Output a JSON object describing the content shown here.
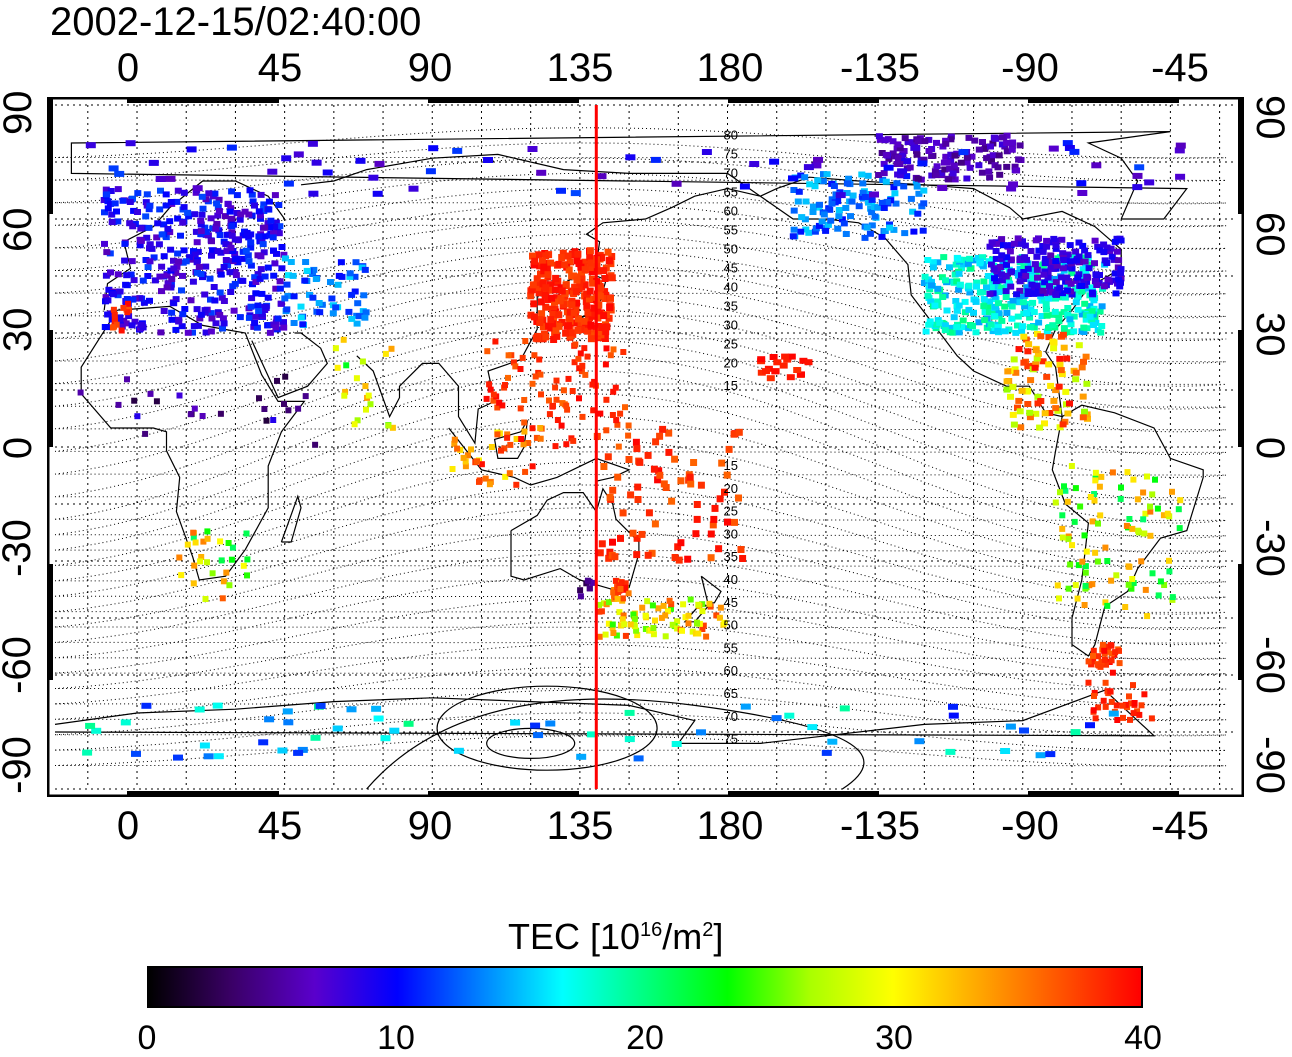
{
  "title": "2002-12-15/02:40:00",
  "lon_ticks": [
    "0",
    "45",
    "90",
    "135",
    "180",
    "-135",
    "-90",
    "-45"
  ],
  "lat_ticks": [
    "90",
    "60",
    "30",
    "0",
    "-30",
    "-60",
    "-90"
  ],
  "contour_labels": [
    "80",
    "75",
    "70",
    "65",
    "60",
    "55",
    "50",
    "45",
    "40",
    "35",
    "30",
    "25",
    "20",
    "15",
    "15",
    "20",
    "25",
    "30",
    "35",
    "40",
    "45",
    "50",
    "55",
    "60",
    "65",
    "70",
    "75"
  ],
  "colorbar": {
    "label_main": "TEC  [10",
    "label_exp1": "16",
    "label_mid": "/m",
    "label_exp2": "2",
    "label_end": "]",
    "ticks": [
      "0",
      "10",
      "20",
      "30",
      "40"
    ],
    "range": [
      0,
      40
    ],
    "colors": [
      "#000000",
      "#3a0066",
      "#5a00cc",
      "#0000ff",
      "#0080ff",
      "#00ffff",
      "#00ff80",
      "#00ff00",
      "#aaff00",
      "#ffff00",
      "#ffaa00",
      "#ff5500",
      "#ff0000"
    ]
  },
  "map": {
    "projection": "cylindrical equidistant",
    "lon_range": [
      -25,
      335
    ],
    "lat_range": [
      -90,
      90
    ],
    "grid_spacing_deg": 15,
    "subsolar_meridian_lon": 140,
    "meridian_line_color": "#ff0000"
  }
}
